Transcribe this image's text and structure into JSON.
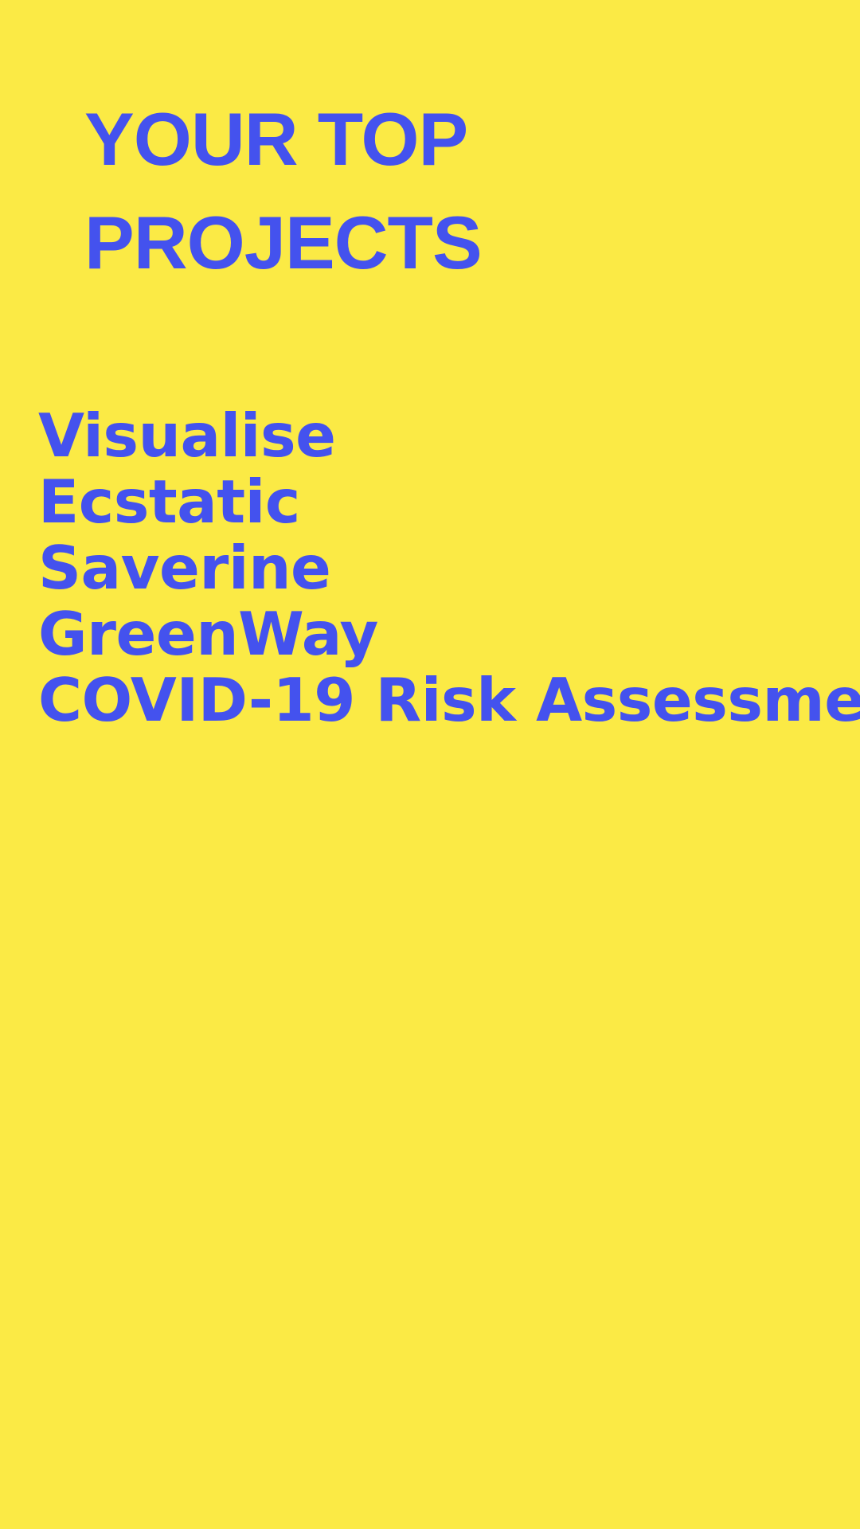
{
  "page": {
    "title_line_1": "YOUR TOP",
    "title_line_2": "PROJECTS",
    "projects": [
      "Visualise",
      "Ecstatic",
      "Saverine",
      "GreenWay",
      "COVID-19 Risk Assessme"
    ]
  },
  "colors": {
    "background": "#fbea45",
    "text": "#4452ee"
  }
}
